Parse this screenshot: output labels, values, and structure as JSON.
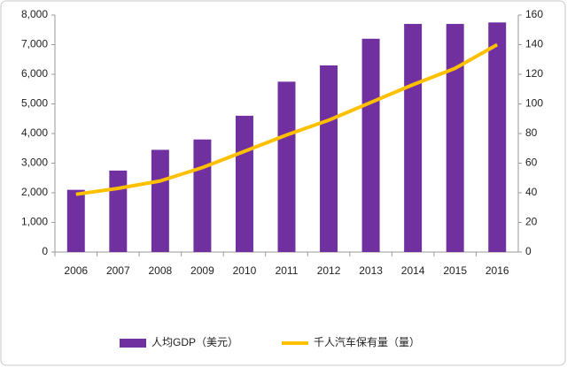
{
  "chart_data": {
    "type": "bar",
    "categories": [
      "2006",
      "2007",
      "2008",
      "2009",
      "2010",
      "2011",
      "2012",
      "2013",
      "2014",
      "2015",
      "2016"
    ],
    "series": [
      {
        "name": "人均GDP（美元）",
        "color": "#7030a0",
        "values": [
          2100,
          2750,
          3450,
          3800,
          4600,
          5750,
          6300,
          7200,
          7700,
          7700,
          7750
        ]
      },
      {
        "name": "千人汽车保有量（量）",
        "color": "#ffc000",
        "type": "line",
        "axis": "y2",
        "values": [
          39,
          43,
          48,
          57,
          68,
          79,
          89,
          101,
          113,
          124,
          140
        ]
      }
    ],
    "ylim": [
      0,
      8000
    ],
    "yticks": [
      0,
      {
        "value": 1000,
        "label": "1,000"
      },
      {
        "value": 2000,
        "label": "2,000"
      },
      {
        "value": 3000,
        "label": "3,000"
      },
      {
        "value": 4000,
        "label": "4,000"
      },
      {
        "value": 5000,
        "label": "5,000"
      },
      {
        "value": 6000,
        "label": "6,000"
      },
      {
        "value": 7000,
        "label": "7,000"
      },
      {
        "value": 8000,
        "label": "8,000"
      }
    ],
    "y2lim": [
      0,
      160
    ],
    "y2ticks": [
      0,
      20,
      40,
      60,
      80,
      100,
      120,
      140,
      160
    ],
    "legend": "bottom"
  }
}
